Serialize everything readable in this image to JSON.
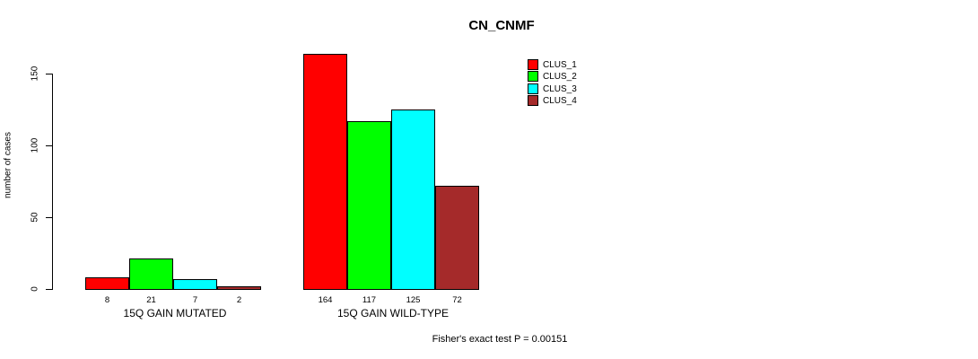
{
  "chart_data": {
    "type": "bar",
    "title": "CN_CNMF",
    "xlabel": "",
    "ylabel": "number of cases",
    "ylim": [
      0,
      150
    ],
    "yticks": [
      0,
      50,
      100,
      150
    ],
    "grid": false,
    "legend_position": "top-right",
    "categories": [
      "15Q GAIN MUTATED",
      "15Q GAIN WILD-TYPE"
    ],
    "series": [
      {
        "name": "CLUS_1",
        "color": "#ff0000",
        "values": [
          8,
          164
        ]
      },
      {
        "name": "CLUS_2",
        "color": "#00ff00",
        "values": [
          21,
          117
        ]
      },
      {
        "name": "CLUS_3",
        "color": "#00ffff",
        "values": [
          7,
          125
        ]
      },
      {
        "name": "CLUS_4",
        "color": "#a52a2a",
        "values": [
          2,
          72
        ]
      }
    ],
    "bar_labels": [
      [
        8,
        21,
        7,
        2
      ],
      [
        164,
        117,
        125,
        72
      ]
    ],
    "annotation": "Fisher's exact test P = 0.00151",
    "colors": {
      "bar_border": "#000000",
      "axis": "#000000",
      "background": "#ffffff"
    }
  }
}
